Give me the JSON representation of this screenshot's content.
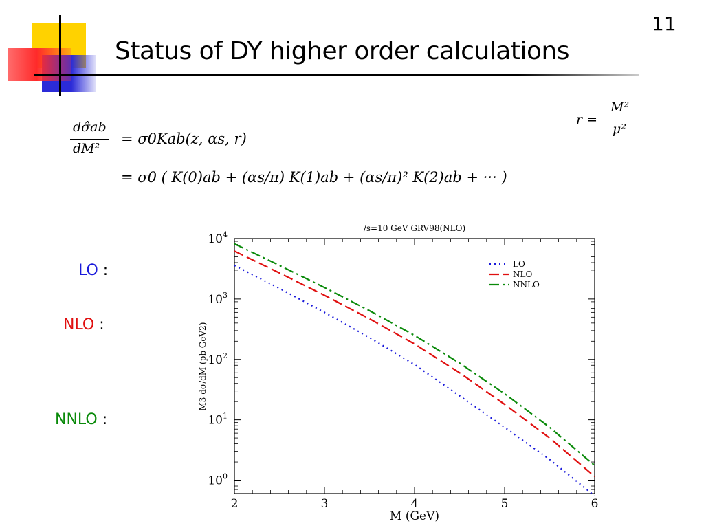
{
  "slide": {
    "number": "11",
    "title": "Status of DY higher order calculations"
  },
  "formula": {
    "r_definition": {
      "lhs": "r =",
      "numerator": "M²",
      "denominator": "μ²"
    },
    "line1": {
      "lhs_num": "dσ̂ab",
      "lhs_den": "dM²",
      "rhs": "= σ0Kab(z, αs, r)"
    },
    "line2": {
      "rhs": "= σ0 ( K(0)ab + (αs/π) K(1)ab + (αs/π)² K(2)ab + ··· )"
    }
  },
  "side_labels": [
    {
      "text": "LO",
      "colon": " :",
      "color": "#1a1adb"
    },
    {
      "text": "NLO",
      "colon": " :",
      "color": "#e01010"
    },
    {
      "text": "NNLO",
      "colon": " :",
      "color": "#0a8a0a"
    }
  ],
  "chart_data": {
    "type": "line",
    "title": "/s=10 GeV GRV98(NLO)",
    "xlabel": "M (GeV)",
    "ylabel": "M3 dσ/dM (pb GeV2)",
    "xlim": [
      2,
      6
    ],
    "ylim": [
      0.6,
      10000
    ],
    "yscale": "log",
    "x_ticks": [
      "2",
      "3",
      "4",
      "5",
      "6"
    ],
    "y_ticks": [
      {
        "base": "10",
        "exp": "0"
      },
      {
        "base": "10",
        "exp": "1"
      },
      {
        "base": "10",
        "exp": "2"
      },
      {
        "base": "10",
        "exp": "3"
      },
      {
        "base": "10",
        "exp": "4"
      }
    ],
    "legend_position": "top-right",
    "x": [
      2.0,
      2.5,
      3.0,
      3.5,
      4.0,
      4.5,
      5.0,
      5.5,
      6.0
    ],
    "series": [
      {
        "name": "LO",
        "color": "#1a1adb",
        "dash": "dotted",
        "values": [
          3600,
          1500,
          600,
          230,
          82,
          25,
          7.5,
          2.2,
          0.55
        ]
      },
      {
        "name": "NLO",
        "color": "#e01010",
        "dash": "dashed",
        "values": [
          6200,
          2700,
          1150,
          470,
          180,
          60,
          18,
          5.0,
          1.15
        ]
      },
      {
        "name": "NNLO",
        "color": "#0a8a0a",
        "dash": "dashdot",
        "values": [
          8200,
          3600,
          1550,
          640,
          250,
          87,
          27,
          7.5,
          1.75
        ]
      }
    ]
  }
}
